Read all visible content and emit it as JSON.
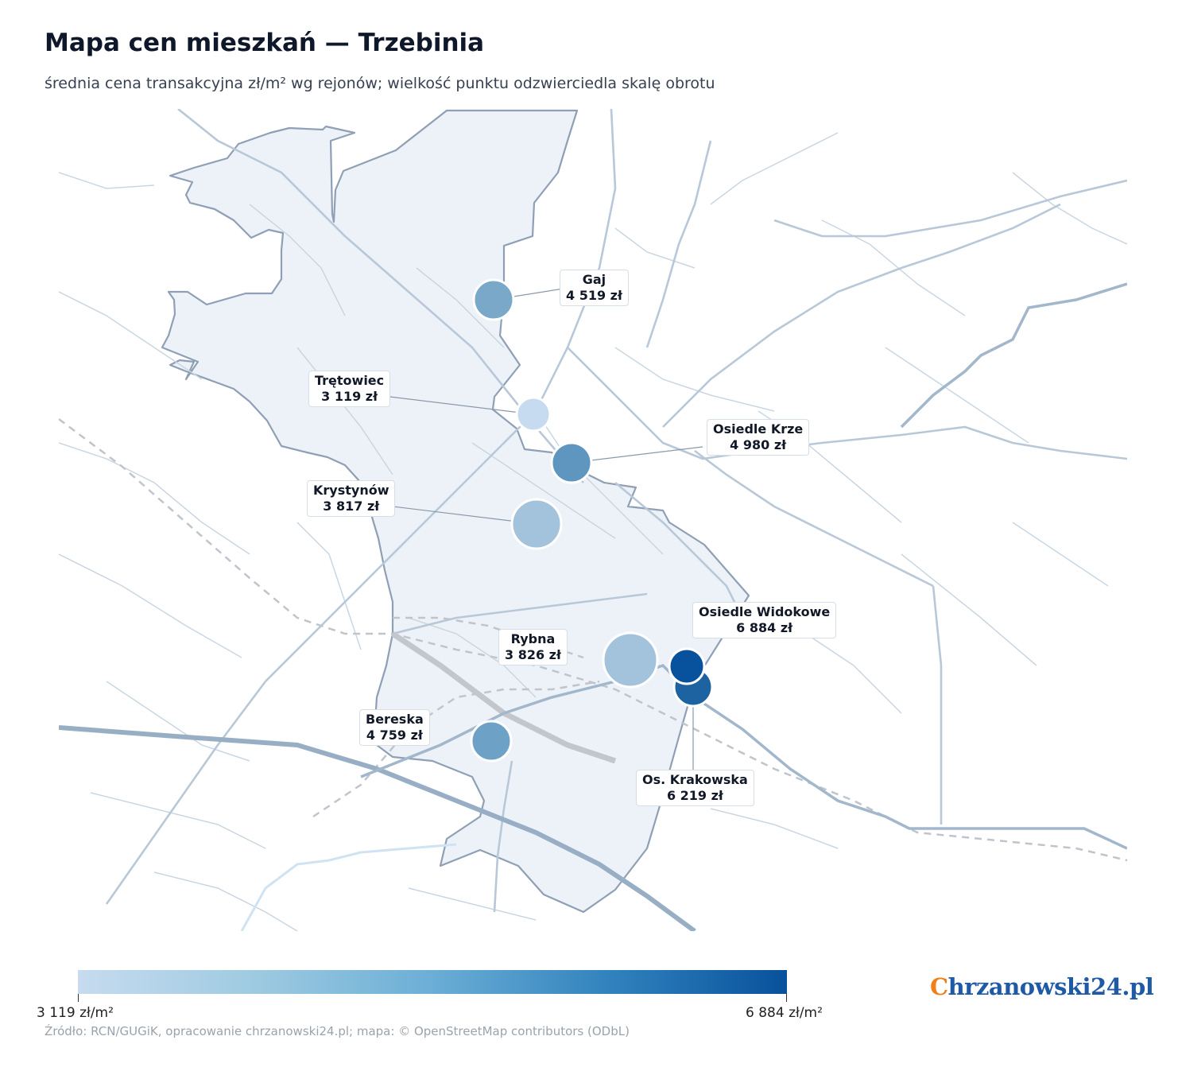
{
  "header": {
    "title": "Mapa cen mieszkań — Trzebinia",
    "subtitle": "średnia cena transakcyjna zł/m² wg rejonów; wielkość punktu odzwierciedla skalę obrotu"
  },
  "colors": {
    "min": "#c6dbef",
    "max": "#08519c",
    "district_fill": "#edf2f8",
    "district_border": "#8f9fb5",
    "roads": "#b8c8d8",
    "rail": "#c0c4cc"
  },
  "districts": [
    {
      "name": "Gaj",
      "price": "4 519 zł",
      "value": 4519
    },
    {
      "name": "Trętowiec",
      "price": "3 119 zł",
      "value": 3119
    },
    {
      "name": "Osiedle Krze",
      "price": "4 980 zł",
      "value": 4980
    },
    {
      "name": "Krystynów",
      "price": "3 817 zł",
      "value": 3817
    },
    {
      "name": "Osiedle Widokowe",
      "price": "6 884 zł",
      "value": 6884
    },
    {
      "name": "Rybna",
      "price": "3 826 zł",
      "value": 3826
    },
    {
      "name": "Bereska",
      "price": "4 759 zł",
      "value": 4759
    },
    {
      "name": "Os. Krakowska",
      "price": "6 219 zł",
      "value": 6219
    }
  ],
  "legend": {
    "min_label": "3 119 zł/m²",
    "max_label": "6 884 zł/m²"
  },
  "source": "Źródło: RCN/GUGiK, opracowanie chrzanowski24.pl; mapa: © OpenStreetMap contributors (ODbL)",
  "brand": {
    "first_letter": "C",
    "rest": "hrzanowski24.pl"
  }
}
